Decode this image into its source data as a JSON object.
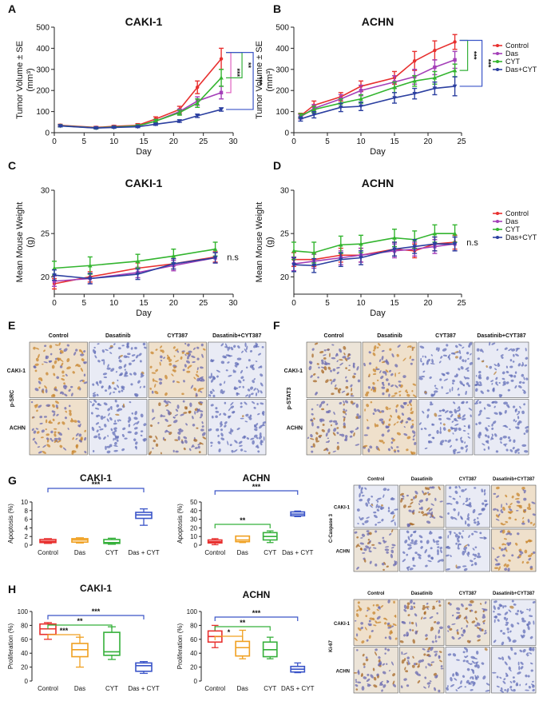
{
  "colors": {
    "control": "#e8302f",
    "das": "#a43fb8",
    "cyt": "#33b52f",
    "dascyt": "#2b3fa0",
    "box_control": "#e8302f",
    "box_das": "#f0a020",
    "box_cyt": "#35b03a",
    "box_dascyt": "#3b55c8",
    "sig_blue": "#3b55c8",
    "sig_green": "#35b03a",
    "sig_orange": "#f0a020",
    "sig_pink": "#e060c0"
  },
  "panel_letters": [
    "A",
    "B",
    "C",
    "D",
    "E",
    "F",
    "G",
    "H"
  ],
  "legend": {
    "items": [
      "Control",
      "Das",
      "CYT",
      "Das+CYT"
    ]
  },
  "chart_data": [
    {
      "id": "A",
      "type": "line",
      "title": "CAKI-1",
      "xlabel": "Day",
      "ylabel_lines": [
        "Tumor Volume ± SE",
        "(mm³)"
      ],
      "xlim": [
        0,
        30
      ],
      "ylim": [
        0,
        500
      ],
      "xticks": [
        0,
        5,
        10,
        15,
        20,
        25,
        30
      ],
      "yticks": [
        0,
        100,
        200,
        300,
        400,
        500
      ],
      "x": [
        1,
        7,
        10,
        14,
        17,
        21,
        24,
        28
      ],
      "series": [
        {
          "name": "Control",
          "values": [
            35,
            25,
            30,
            35,
            65,
            110,
            215,
            350
          ],
          "err": [
            5,
            5,
            5,
            8,
            10,
            15,
            30,
            50
          ]
        },
        {
          "name": "Das",
          "values": [
            33,
            23,
            27,
            32,
            55,
            100,
            150,
            190
          ],
          "err": [
            5,
            4,
            4,
            6,
            8,
            12,
            20,
            30
          ]
        },
        {
          "name": "CYT",
          "values": [
            33,
            23,
            27,
            32,
            55,
            95,
            140,
            260
          ],
          "err": [
            5,
            4,
            4,
            6,
            8,
            12,
            20,
            40
          ]
        },
        {
          "name": "Das+CYT",
          "values": [
            32,
            22,
            25,
            28,
            40,
            55,
            80,
            110
          ],
          "err": [
            4,
            3,
            3,
            4,
            5,
            6,
            8,
            8
          ]
        }
      ],
      "significance": [
        "***",
        "**",
        "***"
      ]
    },
    {
      "id": "B",
      "type": "line",
      "title": "ACHN",
      "xlabel": "Day",
      "ylabel_lines": [
        "Tumor Volume ± SE",
        "(mm³)"
      ],
      "xlim": [
        0,
        25
      ],
      "ylim": [
        0,
        500
      ],
      "xticks": [
        0,
        5,
        10,
        15,
        20,
        25
      ],
      "yticks": [
        0,
        100,
        200,
        300,
        400,
        500
      ],
      "x": [
        1,
        3,
        7,
        10,
        15,
        18,
        21,
        24
      ],
      "series": [
        {
          "name": "Control",
          "values": [
            80,
            130,
            170,
            220,
            260,
            340,
            390,
            430
          ],
          "err": [
            12,
            20,
            20,
            25,
            30,
            45,
            45,
            35
          ]
        },
        {
          "name": "Das",
          "values": [
            75,
            115,
            160,
            200,
            240,
            265,
            310,
            345
          ],
          "err": [
            10,
            18,
            20,
            25,
            30,
            35,
            35,
            40
          ]
        },
        {
          "name": "CYT",
          "values": [
            80,
            110,
            140,
            160,
            215,
            245,
            260,
            295
          ],
          "err": [
            10,
            15,
            20,
            20,
            25,
            25,
            30,
            30
          ]
        },
        {
          "name": "Das+CYT",
          "values": [
            65,
            85,
            120,
            125,
            165,
            185,
            210,
            220
          ],
          "err": [
            10,
            15,
            20,
            20,
            25,
            25,
            30,
            45
          ]
        }
      ],
      "significance": [
        "***",
        "***"
      ]
    },
    {
      "id": "C",
      "type": "line",
      "title": "CAKI-1",
      "xlabel": "Day",
      "ylabel_lines": [
        "Mean Mouse  Weight",
        "(g)"
      ],
      "xlim": [
        0,
        30
      ],
      "ylim": [
        18,
        30
      ],
      "xticks": [
        0,
        5,
        10,
        15,
        20,
        25,
        30
      ],
      "yticks": [
        20,
        25,
        30
      ],
      "x": [
        0,
        6,
        14,
        20,
        27
      ],
      "series": [
        {
          "name": "Control",
          "values": [
            19.2,
            20.0,
            21.0,
            21.5,
            22.3
          ],
          "err": [
            0.6,
            0.6,
            0.6,
            0.6,
            0.6
          ]
        },
        {
          "name": "Das",
          "values": [
            19.5,
            19.8,
            20.5,
            21.3,
            22.2
          ],
          "err": [
            0.6,
            0.6,
            0.6,
            0.6,
            0.6
          ]
        },
        {
          "name": "CYT",
          "values": [
            21.0,
            21.3,
            21.8,
            22.4,
            23.2
          ],
          "err": [
            0.8,
            1.0,
            0.8,
            0.8,
            0.8
          ]
        },
        {
          "name": "Das+CYT",
          "values": [
            20.2,
            19.8,
            20.3,
            21.5,
            22.2
          ],
          "err": [
            0.6,
            0.6,
            0.6,
            0.6,
            0.6
          ]
        }
      ],
      "annotation": "n.s"
    },
    {
      "id": "D",
      "type": "line",
      "title": "ACHN",
      "xlabel": "Day",
      "ylabel_lines": [
        "Mean Mouse  Weight",
        "(g)"
      ],
      "xlim": [
        0,
        25
      ],
      "ylim": [
        18,
        30
      ],
      "xticks": [
        0,
        5,
        10,
        15,
        20,
        25
      ],
      "yticks": [
        20,
        25,
        30
      ],
      "x": [
        0,
        3,
        7,
        10,
        15,
        18,
        21,
        24
      ],
      "series": [
        {
          "name": "Control",
          "values": [
            22.0,
            22.0,
            22.5,
            22.5,
            23.2,
            23.0,
            23.8,
            24.0
          ],
          "err": [
            0.8,
            0.8,
            0.8,
            0.8,
            0.8,
            0.8,
            0.8,
            0.8
          ]
        },
        {
          "name": "Das",
          "values": [
            21.5,
            21.8,
            22.2,
            22.5,
            23.0,
            23.2,
            23.5,
            23.8
          ],
          "err": [
            0.8,
            0.8,
            0.8,
            0.8,
            0.8,
            0.8,
            0.8,
            0.8
          ]
        },
        {
          "name": "CYT",
          "values": [
            23.0,
            22.8,
            23.7,
            23.8,
            24.5,
            24.3,
            25.0,
            25.0
          ],
          "err": [
            1.0,
            1.2,
            1.0,
            1.0,
            1.0,
            1.0,
            1.0,
            1.0
          ]
        },
        {
          "name": "Das+CYT",
          "values": [
            21.4,
            21.3,
            22.0,
            22.2,
            23.2,
            23.5,
            23.8,
            23.8
          ],
          "err": [
            0.8,
            0.8,
            0.8,
            0.8,
            0.8,
            0.8,
            0.8,
            0.8
          ]
        }
      ],
      "annotation": "n.s"
    },
    {
      "id": "G1",
      "type": "box",
      "title": "CAKI-1",
      "ylabel": "Apoptosis (%)",
      "ylim": [
        0,
        10
      ],
      "yticks": [
        0,
        2,
        4,
        6,
        8,
        10
      ],
      "categories": [
        "Control",
        "Das",
        "CYT",
        "Das + CYT"
      ],
      "boxes": [
        {
          "min": 0.4,
          "q1": 0.6,
          "median": 0.9,
          "q3": 1.3,
          "max": 1.5
        },
        {
          "min": 0.5,
          "q1": 0.7,
          "median": 1.2,
          "q3": 1.5,
          "max": 1.7
        },
        {
          "min": 0.2,
          "q1": 0.4,
          "median": 0.6,
          "q3": 1.3,
          "max": 1.6
        },
        {
          "min": 4.6,
          "q1": 6.2,
          "median": 7.0,
          "q3": 7.6,
          "max": 8.4
        }
      ],
      "comparisons": [
        {
          "from": 0,
          "to": 3,
          "label": "***"
        }
      ]
    },
    {
      "id": "G2",
      "type": "box",
      "title": "ACHN",
      "ylabel": "Apoptosis (%)",
      "ylim": [
        0,
        50
      ],
      "yticks": [
        0,
        10,
        20,
        30,
        40,
        50
      ],
      "categories": [
        "Control",
        "Das",
        "CYT",
        "Das + CYT"
      ],
      "boxes": [
        {
          "min": 0.5,
          "q1": 2.5,
          "median": 4.0,
          "q3": 6.0,
          "max": 7.5
        },
        {
          "min": 3.0,
          "q1": 4.0,
          "median": 6.0,
          "q3": 10.5,
          "max": 10.5
        },
        {
          "min": 3.0,
          "q1": 6.0,
          "median": 10.0,
          "q3": 14.5,
          "max": 16.5
        },
        {
          "min": 33.0,
          "q1": 34.0,
          "median": 36.0,
          "q3": 38.5,
          "max": 39.5
        }
      ],
      "comparisons": [
        {
          "from": 0,
          "to": 2,
          "label": "**"
        },
        {
          "from": 0,
          "to": 3,
          "label": "***"
        }
      ]
    },
    {
      "id": "H1",
      "type": "box",
      "title": "CAKI-1",
      "ylabel": "Proliferation (%)",
      "ylim": [
        0,
        100
      ],
      "yticks": [
        0,
        20,
        40,
        60,
        80,
        100
      ],
      "categories": [
        "Control",
        "Das",
        "CYT",
        "Das + CYT"
      ],
      "boxes": [
        {
          "min": 60,
          "q1": 67,
          "median": 75,
          "q3": 82,
          "max": 84
        },
        {
          "min": 20,
          "q1": 35,
          "median": 45,
          "q3": 54,
          "max": 63
        },
        {
          "min": 31,
          "q1": 37,
          "median": 42,
          "q3": 70,
          "max": 78
        },
        {
          "min": 11,
          "q1": 14,
          "median": 22,
          "q3": 26,
          "max": 28
        }
      ],
      "comparisons": [
        {
          "from": 0,
          "to": 1,
          "label": "***"
        },
        {
          "from": 0,
          "to": 2,
          "label": "**"
        },
        {
          "from": 0,
          "to": 3,
          "label": "***"
        }
      ]
    },
    {
      "id": "H2",
      "type": "box",
      "title": "ACHN",
      "ylabel": "Proliferation (%)",
      "ylim": [
        0,
        100
      ],
      "yticks": [
        0,
        20,
        40,
        60,
        80,
        100
      ],
      "categories": [
        "Control",
        "Das",
        "CYT",
        "DAS + CYT"
      ],
      "boxes": [
        {
          "min": 48,
          "q1": 56,
          "median": 64,
          "q3": 72,
          "max": 80
        },
        {
          "min": 32,
          "q1": 36,
          "median": 48,
          "q3": 57,
          "max": 73
        },
        {
          "min": 32,
          "q1": 35,
          "median": 45,
          "q3": 56,
          "max": 63
        },
        {
          "min": 12,
          "q1": 13,
          "median": 17,
          "q3": 21,
          "max": 26
        }
      ],
      "comparisons": [
        {
          "from": 0,
          "to": 1,
          "label": "*"
        },
        {
          "from": 0,
          "to": 2,
          "label": "**"
        },
        {
          "from": 0,
          "to": 3,
          "label": "***"
        }
      ]
    }
  ],
  "micrographs": {
    "E": {
      "columns": [
        "Control",
        "Dasatinib",
        "CYT387",
        "Dasatinib+CYT387"
      ],
      "rows": [
        "CAKI-1",
        "ACHN"
      ],
      "stain": "p-SRC"
    },
    "F": {
      "columns": [
        "Control",
        "Dasatinib",
        "CYT387",
        "Dasatinib+CYT387"
      ],
      "rows": [
        "CAKI-1",
        "ACHN"
      ],
      "stain": "p-STAT3"
    },
    "G": {
      "columns": [
        "Control",
        "Dasatinib",
        "CYT387",
        "Dasatinib+CYT387"
      ],
      "rows": [
        "CAKI-1",
        "ACHN"
      ],
      "stain": "C-Caspase 3"
    },
    "H": {
      "columns": [
        "Control",
        "Dasatinib",
        "CYT387",
        "Dasatinib+CYT387"
      ],
      "rows": [
        "CAKI-1",
        "ACHN"
      ],
      "stain": "Ki-67"
    }
  }
}
